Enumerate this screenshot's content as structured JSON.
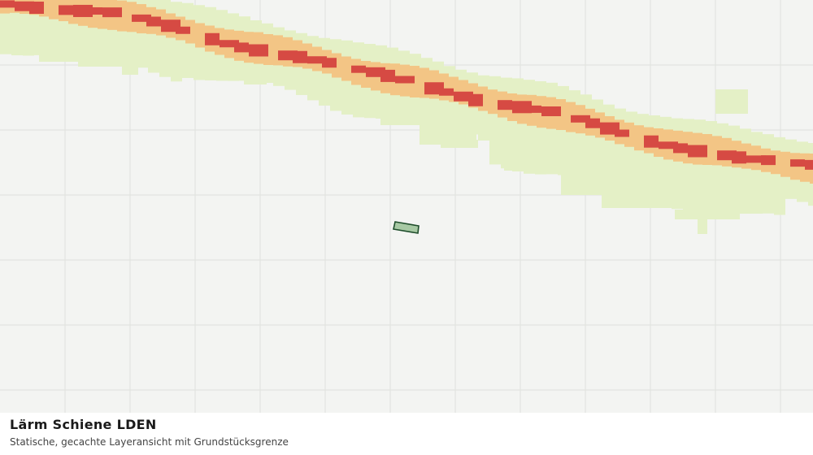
{
  "map": {
    "layer_name": "Lärm Schiene LDEN",
    "colors": {
      "background": "#f3f4f2",
      "grid": "#dfe1dd",
      "noise_low": "#e4f0c6",
      "noise_mid": "#f3c585",
      "noise_high": "#d64a43",
      "parcel_fill": "#a7c9a4",
      "parcel_stroke": "#1e4d2b"
    }
  },
  "caption": {
    "title": "Lärm Schiene LDEN",
    "subtitle": "Statische, gecachte Layeransicht mit Grundstücksgrenze"
  }
}
